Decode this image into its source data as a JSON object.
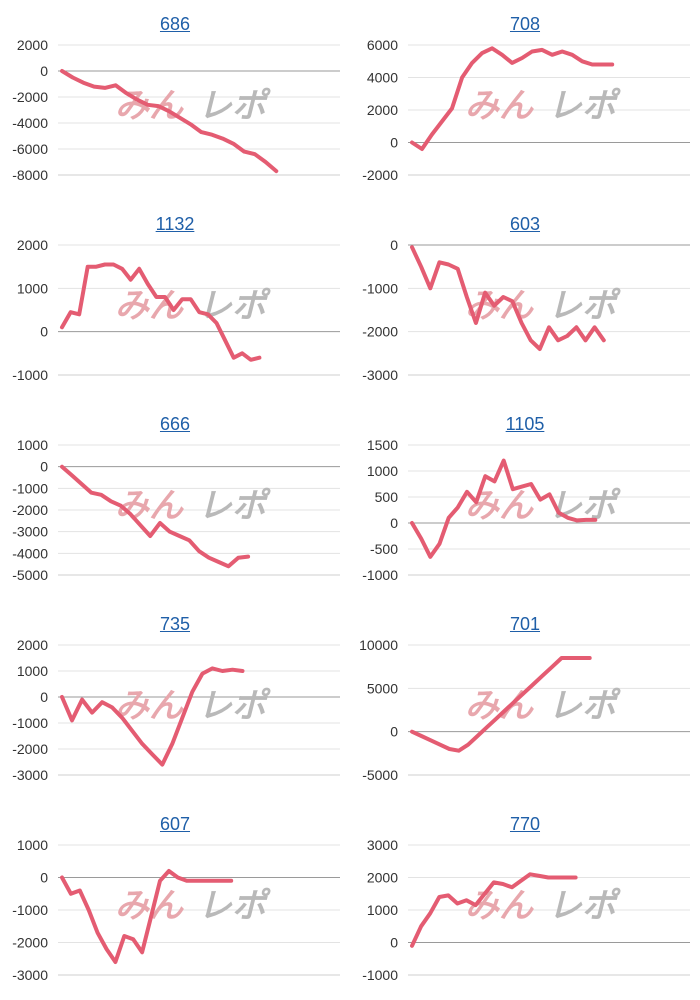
{
  "watermark": {
    "left": "みん",
    "right": "レポ",
    "left_color": "#e8a7ad",
    "right_color": "#b9b9b9"
  },
  "line_color": "#e45c72",
  "chart_data": [
    {
      "type": "line",
      "title": "686",
      "yticks": [
        2000,
        0,
        -2000,
        -4000,
        -6000,
        -8000
      ],
      "ylim": [
        -8000,
        2000
      ],
      "x": [
        0,
        1,
        2,
        3,
        4,
        5,
        6,
        7,
        8,
        9,
        10,
        11,
        12,
        13,
        14,
        15,
        16,
        17,
        18,
        19,
        20
      ],
      "values": [
        0,
        -500,
        -900,
        -1200,
        -1300,
        -1100,
        -1700,
        -2200,
        -2600,
        -2700,
        -3100,
        -3600,
        -4100,
        -4700,
        -4900,
        -5200,
        -5600,
        -6200,
        -6400,
        -7000,
        -7700
      ]
    },
    {
      "type": "line",
      "title": "708",
      "yticks": [
        6000,
        4000,
        2000,
        0,
        -2000
      ],
      "ylim": [
        -2000,
        6000
      ],
      "x": [
        0,
        1,
        2,
        3,
        4,
        5,
        6,
        7,
        8,
        9,
        10,
        11,
        12,
        13,
        14,
        15,
        16,
        17,
        18,
        19,
        20
      ],
      "values": [
        0,
        -400,
        500,
        1300,
        2100,
        4000,
        4900,
        5500,
        5800,
        5400,
        4900,
        5200,
        5600,
        5700,
        5400,
        5600,
        5400,
        5000,
        4800,
        4800,
        4800
      ]
    },
    {
      "type": "line",
      "title": "1132",
      "yticks": [
        2000,
        1000,
        0,
        -1000
      ],
      "ylim": [
        -1000,
        2000
      ],
      "x": [
        0,
        1,
        2,
        3,
        4,
        5,
        6,
        7,
        8,
        9,
        10,
        11,
        12,
        13,
        14,
        15,
        16,
        17,
        18,
        19,
        20,
        21,
        22,
        23
      ],
      "values": [
        100,
        450,
        400,
        1500,
        1500,
        1550,
        1550,
        1450,
        1200,
        1450,
        1100,
        800,
        800,
        500,
        750,
        750,
        450,
        400,
        200,
        -200,
        -600,
        -500,
        -650,
        -600
      ]
    },
    {
      "type": "line",
      "title": "603",
      "yticks": [
        0,
        -1000,
        -2000,
        -3000
      ],
      "ylim": [
        -3000,
        0
      ],
      "x": [
        0,
        1,
        2,
        3,
        4,
        5,
        6,
        7,
        8,
        9,
        10,
        11,
        12,
        13,
        14,
        15,
        16,
        17,
        18,
        19,
        20,
        21
      ],
      "values": [
        -50,
        -500,
        -1000,
        -400,
        -450,
        -550,
        -1200,
        -1800,
        -1100,
        -1400,
        -1200,
        -1300,
        -1800,
        -2200,
        -2400,
        -1900,
        -2200,
        -2100,
        -1900,
        -2200,
        -1900,
        -2200
      ]
    },
    {
      "type": "line",
      "title": "666",
      "yticks": [
        1000,
        0,
        -1000,
        -2000,
        -3000,
        -4000,
        -5000
      ],
      "ylim": [
        -5000,
        1000
      ],
      "x": [
        0,
        1,
        2,
        3,
        4,
        5,
        6,
        7,
        8,
        9,
        10,
        11,
        12,
        13,
        14,
        15,
        16,
        17,
        18,
        19
      ],
      "values": [
        0,
        -400,
        -800,
        -1200,
        -1300,
        -1600,
        -1800,
        -2200,
        -2700,
        -3200,
        -2600,
        -3000,
        -3200,
        -3400,
        -3900,
        -4200,
        -4400,
        -4600,
        -4200,
        -4150
      ]
    },
    {
      "type": "line",
      "title": "1105",
      "yticks": [
        1500,
        1000,
        500,
        0,
        -500,
        -1000
      ],
      "ylim": [
        -1000,
        1500
      ],
      "x": [
        0,
        1,
        2,
        3,
        4,
        5,
        6,
        7,
        8,
        9,
        10,
        11,
        12,
        13,
        14,
        15,
        16,
        17,
        18,
        19,
        20
      ],
      "values": [
        0,
        -300,
        -650,
        -400,
        100,
        300,
        600,
        400,
        900,
        800,
        1200,
        650,
        700,
        750,
        450,
        550,
        200,
        100,
        50,
        60,
        60
      ]
    },
    {
      "type": "line",
      "title": "735",
      "yticks": [
        2000,
        1000,
        0,
        -1000,
        -2000,
        -3000
      ],
      "ylim": [
        -3000,
        2000
      ],
      "x": [
        0,
        1,
        2,
        3,
        4,
        5,
        6,
        7,
        8,
        9,
        10,
        11,
        12,
        13,
        14,
        15,
        16,
        17,
        18
      ],
      "values": [
        0,
        -900,
        -100,
        -600,
        -200,
        -400,
        -800,
        -1300,
        -1800,
        -2200,
        -2600,
        -1800,
        -800,
        200,
        900,
        1100,
        1000,
        1050,
        1000
      ]
    },
    {
      "type": "line",
      "title": "701",
      "yticks": [
        10000,
        5000,
        0,
        -5000
      ],
      "ylim": [
        -5000,
        10000
      ],
      "x": [
        0,
        1,
        2,
        3,
        4,
        5,
        6,
        7,
        8,
        9,
        10,
        11,
        12,
        13,
        14,
        15,
        16,
        17,
        18,
        19
      ],
      "values": [
        0,
        -500,
        -1000,
        -1500,
        -2000,
        -2200,
        -1500,
        -500,
        500,
        1500,
        2500,
        3500,
        4500,
        5500,
        6500,
        7500,
        8500,
        8500,
        8500,
        8500
      ]
    },
    {
      "type": "line",
      "title": "607",
      "yticks": [
        1000,
        0,
        -1000,
        -2000,
        -3000
      ],
      "ylim": [
        -3000,
        1000
      ],
      "x": [
        0,
        1,
        2,
        3,
        4,
        5,
        6,
        7,
        8,
        9,
        10,
        11,
        12,
        13,
        14,
        15,
        16,
        17,
        18,
        19
      ],
      "values": [
        0,
        -500,
        -400,
        -1000,
        -1700,
        -2200,
        -2600,
        -1800,
        -1900,
        -2300,
        -1200,
        -100,
        200,
        0,
        -100,
        -100,
        -100,
        -100,
        -100,
        -100
      ]
    },
    {
      "type": "line",
      "title": "770",
      "yticks": [
        3000,
        2000,
        1000,
        0,
        -1000
      ],
      "ylim": [
        -1000,
        3000
      ],
      "x": [
        0,
        1,
        2,
        3,
        4,
        5,
        6,
        7,
        8,
        9,
        10,
        11,
        12,
        13,
        14,
        15,
        16,
        17,
        18
      ],
      "values": [
        -100,
        500,
        900,
        1400,
        1450,
        1200,
        1300,
        1150,
        1500,
        1850,
        1800,
        1700,
        1900,
        2100,
        2050,
        2000,
        2000,
        2000,
        2000
      ]
    }
  ]
}
